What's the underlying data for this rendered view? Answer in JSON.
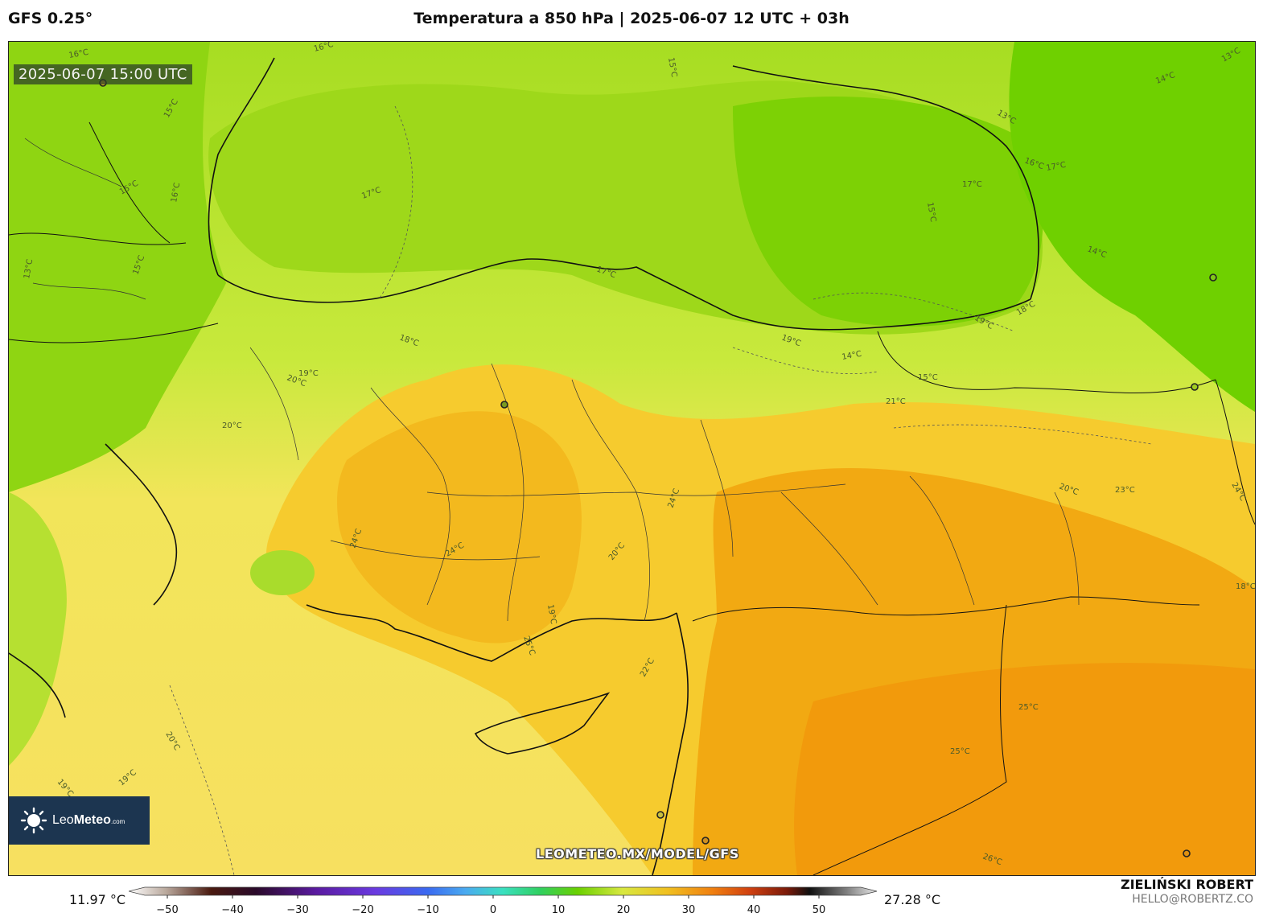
{
  "header": {
    "model": "GFS 0.25°",
    "title": "Temperatura a 850 hPa | 2025-06-07 12 UTC + 03h"
  },
  "map": {
    "timestamp_badge": "2025-06-07 15:00 UTC",
    "watermark": "LEOMETEO.MX/MODEL/GFS",
    "logo": {
      "name": "Leo",
      "name_bold": "Meteo",
      "suffix": ".com"
    },
    "contour_labels": [
      "16°C",
      "16°C",
      "15°C",
      "13°C",
      "14°C",
      "13°C",
      "15°C",
      "16°C",
      "16°C",
      "17°C",
      "17°C",
      "15°C",
      "15°C",
      "15°C",
      "17°C",
      "17°C",
      "13°C",
      "14°C",
      "18°C",
      "19°C",
      "18°C",
      "19°C",
      "14°C",
      "15°C",
      "19°C",
      "21°C",
      "20°C",
      "20°C",
      "20°C",
      "23°C",
      "24°C",
      "24°C",
      "24°C",
      "20°C",
      "19°C",
      "24°C",
      "25°C",
      "25°C",
      "25°C",
      "22°C",
      "26°C",
      "20°C",
      "19°C",
      "19°C",
      "18°C"
    ],
    "colors": {
      "cool": "#6fd400",
      "mid": "#c3e83a",
      "warm": "#f4da41",
      "hot": "#f2a60e"
    }
  },
  "colorbar": {
    "min_label": "11.97 °C",
    "max_label": "27.28 °C",
    "ticks": [
      "−50",
      "−40",
      "−30",
      "−20",
      "−10",
      "0",
      "10",
      "20",
      "30",
      "40",
      "50"
    ]
  },
  "footer": {
    "author": "ZIELIŃSKI ROBERT",
    "email": "HELLO@ROBERTZ.CO"
  }
}
